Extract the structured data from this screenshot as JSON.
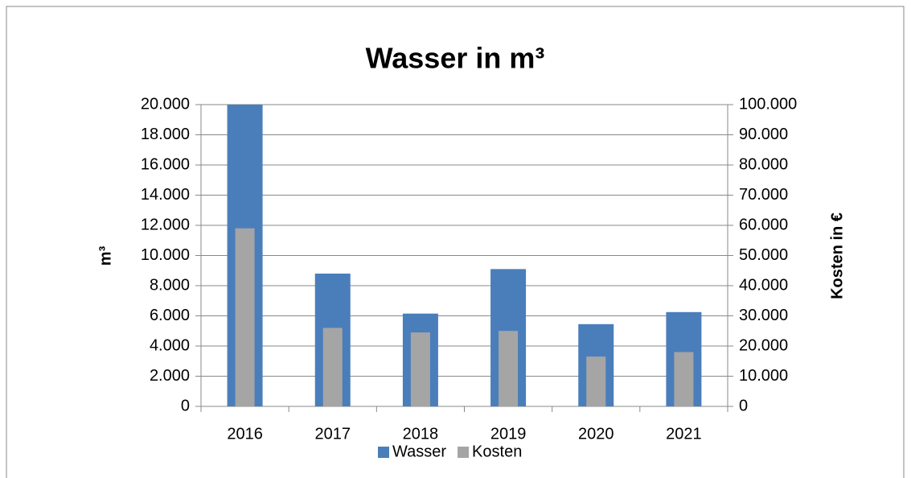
{
  "chart_data": {
    "type": "bar",
    "title": "Wasser in m³",
    "y_label": "m³",
    "y2_label": "Kosten in €",
    "categories": [
      "2016",
      "2017",
      "2018",
      "2019",
      "2020",
      "2021"
    ],
    "series": [
      {
        "name": "Wasser",
        "color": "#4a7ebb",
        "values": [
          20000,
          8800,
          6150,
          9100,
          5450,
          6250
        ]
      },
      {
        "name": "Kosten",
        "color": "#a5a5a5",
        "axis": "y2",
        "values": [
          59000,
          26000,
          24500,
          25000,
          16500,
          18000
        ]
      }
    ],
    "ylim": [
      0,
      20000
    ],
    "yticks": [
      0,
      {
        "value": 2000,
        "label": "2.000"
      },
      {
        "value": 4000,
        "label": "4.000"
      },
      {
        "value": 6000,
        "label": "6.000"
      },
      {
        "value": 8000,
        "label": "8.000"
      },
      {
        "value": 10000,
        "label": "10.000"
      },
      {
        "value": 12000,
        "label": "12.000"
      },
      {
        "value": 14000,
        "label": "14.000"
      },
      {
        "value": 16000,
        "label": "16.000"
      },
      {
        "value": 18000,
        "label": "18.000"
      },
      {
        "value": 20000,
        "label": "20.000"
      }
    ],
    "y2lim": [
      0,
      100000
    ],
    "y2ticks": [
      0,
      {
        "value": 10000,
        "label": "10.000"
      },
      {
        "value": 20000,
        "label": "20.000"
      },
      {
        "value": 30000,
        "label": "30.000"
      },
      {
        "value": 40000,
        "label": "40.000"
      },
      {
        "value": 50000,
        "label": "50.000"
      },
      {
        "value": 60000,
        "label": "60.000"
      },
      {
        "value": 70000,
        "label": "70.000"
      },
      {
        "value": 80000,
        "label": "80.000"
      },
      {
        "value": 90000,
        "label": "90.000"
      },
      {
        "value": 100000,
        "label": "100.000"
      }
    ],
    "grid": true,
    "legend": "bottom"
  }
}
